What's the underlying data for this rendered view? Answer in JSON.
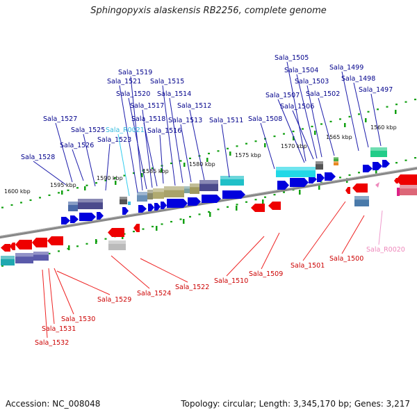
{
  "title": "Sphingopyxis alaskensis RB2256, complete genome",
  "accession": "Accession: NC_008048",
  "summary": "Topology: circular; Length: 3,345,170 bp; Genes: 3,217",
  "colors": {
    "forward_gene": "#0000dd",
    "reverse_gene": "#ee0000",
    "forward_label": "#00008b",
    "reverse_label": "#cc0000",
    "rna_forward_label": "#33bbdd",
    "rna_reverse_label": "#ee88bb",
    "backbone": "#888888",
    "tick": "#11a011"
  },
  "ruler_labels": [
    "1600 kbp",
    "1595 kbp",
    "1590 kbp",
    "1585 kbp",
    "1580 kbp",
    "1575 kbp",
    "1570 kbp",
    "1565 kbp",
    "1560 kbp"
  ],
  "top_gene_labels": [
    "Sala_1528",
    "Sala_1527",
    "Sala_1526",
    "Sala_1525",
    "Sala_1523",
    "Sala_R0021",
    "Sala_1521",
    "Sala_1519",
    "Sala_1520",
    "Sala_1517",
    "Sala_1518",
    "Sala_1516",
    "Sala_1515",
    "Sala_1514",
    "Sala_1513",
    "Sala_1512",
    "Sala_1511",
    "Sala_1508",
    "Sala_1507",
    "Sala_1506",
    "Sala_1505",
    "Sala_1504",
    "Sala_1503",
    "Sala_1502",
    "Sala_1499",
    "Sala_1498",
    "Sala_1497"
  ],
  "bottom_gene_labels": [
    "Sala_1532",
    "Sala_1531",
    "Sala_1530",
    "Sala_1529",
    "Sala_1524",
    "Sala_1522",
    "Sala_1510",
    "Sala_1509",
    "Sala_1501",
    "Sala_1500",
    "Sala_R0020"
  ]
}
